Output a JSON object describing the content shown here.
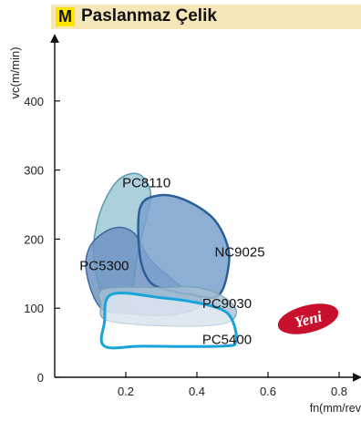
{
  "header": {
    "badge": "M",
    "title": "Paslanmaz Çelik"
  },
  "badge_logo": {
    "text": "Yeni",
    "color": "#c8102e"
  },
  "colors": {
    "header_band": "#f6e7b8",
    "badge": "#ffe400"
  },
  "chart_data": {
    "type": "area",
    "title": "",
    "xlabel": "fn(mm/rev",
    "ylabel": "vc(m/min)",
    "xlim": [
      0,
      0.9
    ],
    "ylim": [
      0,
      500
    ],
    "x_ticks": [
      0.2,
      0.4,
      0.6,
      0.8
    ],
    "x_tick_labels": [
      "0.2",
      "0.4",
      "0.6",
      "0.8"
    ],
    "y_ticks": [
      0,
      100,
      200,
      300,
      400
    ],
    "y_tick_labels": [
      "0",
      "100",
      "200",
      "300",
      "400"
    ],
    "grid": false,
    "series": [
      {
        "name": "PC8110",
        "fill": "#9ec9d6",
        "stroke": "#5a9bb0",
        "stroke_width": 1.5,
        "opacity": 0.85,
        "label_at": [
          0.19,
          275
        ],
        "points": [
          [
            0.15,
            265
          ],
          [
            0.19,
            290
          ],
          [
            0.24,
            293
          ],
          [
            0.27,
            265
          ],
          [
            0.25,
            215
          ],
          [
            0.23,
            170
          ],
          [
            0.22,
            130
          ],
          [
            0.2,
            95
          ],
          [
            0.14,
            110
          ],
          [
            0.11,
            175
          ],
          [
            0.12,
            225
          ]
        ]
      },
      {
        "name": "PC5300",
        "fill": "#6f94c2",
        "stroke": "#3f69a0",
        "stroke_width": 1.5,
        "opacity": 0.85,
        "label_at": [
          0.07,
          155
        ],
        "points": [
          [
            0.1,
            190
          ],
          [
            0.16,
            215
          ],
          [
            0.22,
            210
          ],
          [
            0.27,
            170
          ],
          [
            0.36,
            130
          ],
          [
            0.41,
            115
          ],
          [
            0.4,
            100
          ],
          [
            0.32,
            90
          ],
          [
            0.21,
            92
          ],
          [
            0.13,
            100
          ],
          [
            0.09,
            150
          ]
        ]
      },
      {
        "name": "NC9025",
        "fill": "#7aa1cd",
        "stroke": "#2c5f9a",
        "stroke_width": 2.5,
        "opacity": 0.85,
        "label_at": [
          0.45,
          175
        ],
        "points": [
          [
            0.24,
            245
          ],
          [
            0.29,
            263
          ],
          [
            0.36,
            258
          ],
          [
            0.44,
            233
          ],
          [
            0.48,
            200
          ],
          [
            0.49,
            165
          ],
          [
            0.46,
            118
          ],
          [
            0.38,
            120
          ],
          [
            0.33,
            125
          ],
          [
            0.27,
            137
          ],
          [
            0.24,
            175
          ]
        ]
      },
      {
        "name": "PC9030",
        "fill": "#a5c1d4",
        "stroke": "#7c9fb8",
        "stroke_width": 1.2,
        "opacity": 0.8,
        "label_at": [
          0.415,
          100
        ],
        "points": [
          [
            0.14,
            128
          ],
          [
            0.3,
            130
          ],
          [
            0.4,
            130
          ],
          [
            0.47,
            118
          ],
          [
            0.51,
            98
          ],
          [
            0.49,
            80
          ],
          [
            0.4,
            74
          ],
          [
            0.24,
            76
          ],
          [
            0.14,
            84
          ],
          [
            0.13,
            105
          ]
        ]
      },
      {
        "name": "PC5400",
        "fill": "#ffffff",
        "stroke": "#1aa3d8",
        "stroke_width": 3,
        "opacity": 0.55,
        "label_at": [
          0.415,
          48
        ],
        "points": [
          [
            0.16,
            120
          ],
          [
            0.3,
            115
          ],
          [
            0.4,
            108
          ],
          [
            0.47,
            98
          ],
          [
            0.5,
            82
          ],
          [
            0.51,
            52
          ],
          [
            0.47,
            45
          ],
          [
            0.25,
            45
          ],
          [
            0.14,
            45
          ],
          [
            0.14,
            80
          ]
        ]
      }
    ]
  }
}
